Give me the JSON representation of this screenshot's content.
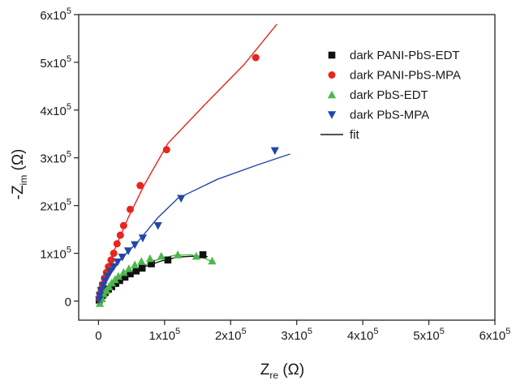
{
  "chart_data": {
    "type": "scatter",
    "xlabel_main": "Z",
    "xlabel_sub": "re",
    "xlabel_unit": " (Ω)",
    "ylabel_main": "-Z",
    "ylabel_sub": "im",
    "ylabel_unit": " (Ω)",
    "xlim": [
      -30000,
      600000
    ],
    "ylim": [
      -40000,
      600000
    ],
    "xticks": [
      0,
      100000,
      200000,
      300000,
      400000,
      500000,
      600000
    ],
    "xtick_labels": [
      {
        "base": "0",
        "exp": ""
      },
      {
        "base": "1x10",
        "exp": "5"
      },
      {
        "base": "2x10",
        "exp": "5"
      },
      {
        "base": "3x10",
        "exp": "5"
      },
      {
        "base": "4x10",
        "exp": "5"
      },
      {
        "base": "5x10",
        "exp": "5"
      },
      {
        "base": "6x10",
        "exp": "5"
      }
    ],
    "yticks": [
      0,
      100000,
      200000,
      300000,
      400000,
      500000,
      600000
    ],
    "ytick_labels": [
      {
        "base": "0",
        "exp": ""
      },
      {
        "base": "1x10",
        "exp": "5"
      },
      {
        "base": "2x10",
        "exp": "5"
      },
      {
        "base": "3x10",
        "exp": "5"
      },
      {
        "base": "4x10",
        "exp": "5"
      },
      {
        "base": "5x10",
        "exp": "5"
      },
      {
        "base": "6x10",
        "exp": "5"
      }
    ],
    "grid": false,
    "legend_position": "top-right",
    "series": [
      {
        "name": "dark PANI-PbS-EDT",
        "marker": "square",
        "color": "#111111",
        "points": [
          [
            1000,
            2000
          ],
          [
            3000,
            6000
          ],
          [
            6000,
            12000
          ],
          [
            10000,
            18000
          ],
          [
            15000,
            25000
          ],
          [
            20000,
            30000
          ],
          [
            26000,
            37000
          ],
          [
            32000,
            43000
          ],
          [
            40000,
            50000
          ],
          [
            48000,
            57000
          ],
          [
            57000,
            63000
          ],
          [
            66000,
            69000
          ],
          [
            80000,
            78000
          ],
          [
            105000,
            86000
          ],
          [
            158000,
            97000
          ]
        ],
        "fit": [
          [
            0,
            0
          ],
          [
            10000,
            20000
          ],
          [
            25000,
            38000
          ],
          [
            45000,
            56000
          ],
          [
            70000,
            72000
          ],
          [
            95000,
            84000
          ],
          [
            120000,
            92000
          ],
          [
            145000,
            94000
          ],
          [
            165000,
            93000
          ]
        ]
      },
      {
        "name": "dark PANI-PbS-MPA",
        "marker": "circle",
        "color": "#e8251e",
        "points": [
          [
            1000,
            5000
          ],
          [
            2000,
            15000
          ],
          [
            4000,
            25000
          ],
          [
            6000,
            35000
          ],
          [
            9000,
            48000
          ],
          [
            12000,
            60000
          ],
          [
            15000,
            72000
          ],
          [
            19000,
            86000
          ],
          [
            23000,
            100000
          ],
          [
            28000,
            120000
          ],
          [
            33000,
            138000
          ],
          [
            38000,
            158000
          ],
          [
            48000,
            192000
          ],
          [
            63000,
            242000
          ],
          [
            103000,
            317000
          ],
          [
            238000,
            510000
          ]
        ],
        "fit": [
          [
            0,
            0
          ],
          [
            10000,
            55000
          ],
          [
            25000,
            110000
          ],
          [
            45000,
            175000
          ],
          [
            70000,
            245000
          ],
          [
            105000,
            330000
          ],
          [
            160000,
            410000
          ],
          [
            220000,
            495000
          ],
          [
            270000,
            580000
          ]
        ]
      },
      {
        "name": "dark PbS-EDT",
        "marker": "triangle-up",
        "color": "#4cb849",
        "points": [
          [
            2000,
            -5000
          ],
          [
            5000,
            5000
          ],
          [
            8000,
            15000
          ],
          [
            12000,
            22000
          ],
          [
            16000,
            30000
          ],
          [
            20000,
            38000
          ],
          [
            25000,
            45000
          ],
          [
            30000,
            52000
          ],
          [
            38000,
            60000
          ],
          [
            46000,
            68000
          ],
          [
            55000,
            76000
          ],
          [
            65000,
            83000
          ],
          [
            78000,
            89000
          ],
          [
            95000,
            94000
          ],
          [
            120000,
            97000
          ],
          [
            148000,
            94000
          ],
          [
            172000,
            84000
          ]
        ],
        "fit": [
          [
            0,
            -5000
          ],
          [
            12000,
            15000
          ],
          [
            30000,
            40000
          ],
          [
            55000,
            65000
          ],
          [
            85000,
            85000
          ],
          [
            115000,
            96000
          ],
          [
            140000,
            97000
          ],
          [
            160000,
            90000
          ],
          [
            175000,
            80000
          ]
        ]
      },
      {
        "name": "dark PbS-MPA",
        "marker": "triangle-down",
        "color": "#2346a8",
        "points": [
          [
            1000,
            3000
          ],
          [
            2000,
            12000
          ],
          [
            4000,
            22000
          ],
          [
            7000,
            32000
          ],
          [
            10000,
            42000
          ],
          [
            14000,
            52000
          ],
          [
            18000,
            62000
          ],
          [
            23000,
            72000
          ],
          [
            29000,
            82000
          ],
          [
            36000,
            92000
          ],
          [
            45000,
            105000
          ],
          [
            55000,
            118000
          ],
          [
            67000,
            132000
          ],
          [
            90000,
            158000
          ],
          [
            125000,
            215000
          ],
          [
            267000,
            315000
          ]
        ],
        "fit": [
          [
            0,
            0
          ],
          [
            15000,
            50000
          ],
          [
            35000,
            90000
          ],
          [
            60000,
            125000
          ],
          [
            90000,
            175000
          ],
          [
            120000,
            215000
          ],
          [
            180000,
            255000
          ],
          [
            240000,
            285000
          ],
          [
            290000,
            308000
          ]
        ]
      }
    ],
    "legend": [
      {
        "label": "dark PANI-PbS-EDT",
        "kind": "square",
        "color": "#111111"
      },
      {
        "label": "dark PANI-PbS-MPA",
        "kind": "circle",
        "color": "#e8251e"
      },
      {
        "label": "dark PbS-EDT",
        "kind": "triangle-up",
        "color": "#4cb849"
      },
      {
        "label": "dark PbS-MPA",
        "kind": "triangle-down",
        "color": "#2346a8"
      },
      {
        "label": "fit",
        "kind": "line",
        "color": "#1a1a1a"
      }
    ]
  }
}
